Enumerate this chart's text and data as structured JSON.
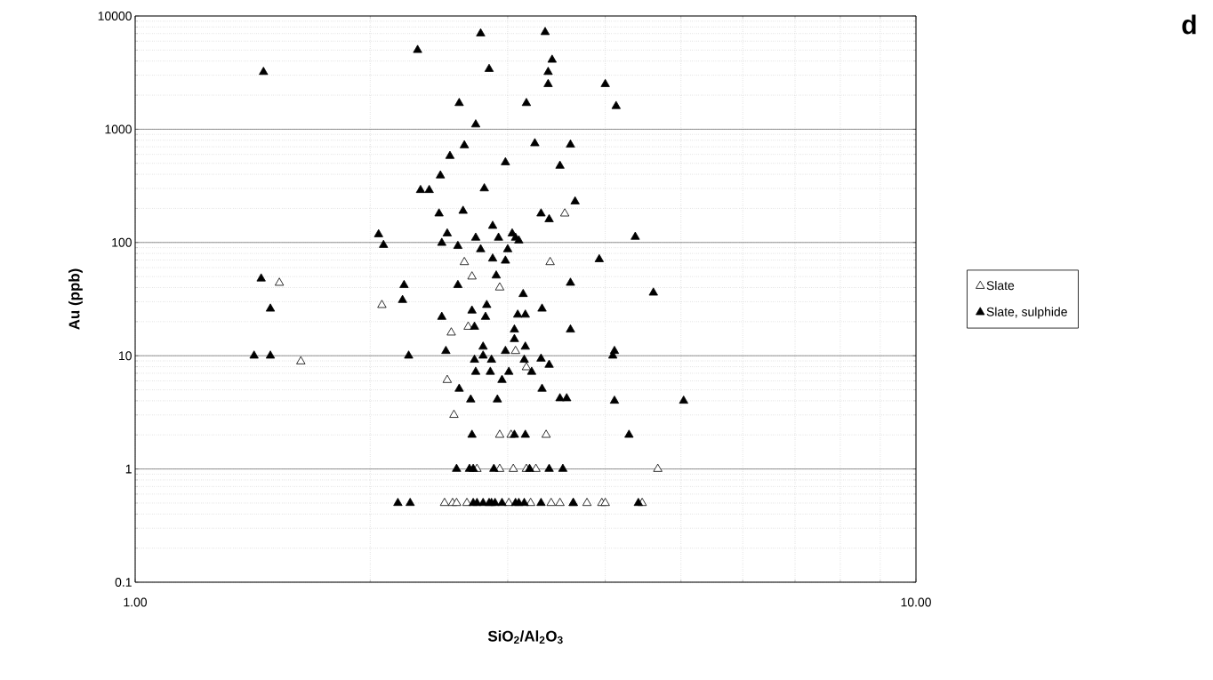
{
  "chart_data": {
    "type": "scatter",
    "xlabel": "SiO$_{2}$/Al$_{2}$O$_{3}$",
    "ylabel": "Au (ppb)",
    "annotations": [
      "d"
    ],
    "log": "xy",
    "grid": true,
    "legend": "right",
    "marker": "triangle",
    "xlim": [
      1,
      10
    ],
    "ylim": [
      0.1,
      10000
    ],
    "xticks": [
      {
        "value": 1,
        "label": "1.00"
      },
      {
        "value": 10,
        "label": "10.00"
      }
    ],
    "yticks": [
      0.1,
      1,
      10,
      100,
      1000,
      10000
    ],
    "series": [
      {
        "name": "Slate",
        "color": "#ffffff",
        "x": [
          1.53,
          1.63,
          2.07,
          2.64,
          2.7,
          2.93,
          3.55,
          3.4,
          2.67,
          2.54,
          3.07,
          3.17,
          2.51,
          2.56,
          2.93,
          3.03,
          3.36,
          4.67,
          2.74,
          2.93,
          3.05,
          3.17,
          3.26,
          2.49,
          2.55,
          2.58,
          2.66,
          3.01,
          3.21,
          3.41,
          3.5,
          3.64,
          3.79,
          3.96,
          4.0,
          4.46
        ],
        "values": [
          44,
          8.9,
          28,
          67,
          50,
          40,
          180,
          67,
          18,
          16,
          11,
          7.9,
          6.1,
          3.0,
          2.0,
          2.0,
          2.0,
          1,
          1,
          1,
          1,
          1,
          1,
          0.5,
          0.5,
          0.5,
          0.5,
          0.5,
          0.5,
          0.5,
          0.5,
          0.5,
          0.5,
          0.5,
          0.5,
          0.5
        ]
      },
      {
        "name": "Slate,  sulphide",
        "color": "#000000",
        "x": [
          2.77,
          3.35,
          2.3,
          3.42,
          2.84,
          3.38,
          3.38,
          1.46,
          4.0,
          4.13,
          2.6,
          3.17,
          2.73,
          2.64,
          3.25,
          3.61,
          2.53,
          2.98,
          3.5,
          2.46,
          2.32,
          2.38,
          2.8,
          3.66,
          2.45,
          2.63,
          3.31,
          3.39,
          2.05,
          2.87,
          2.51,
          2.92,
          3.04,
          3.1,
          3.07,
          2.08,
          2.47,
          2.73,
          2.59,
          2.77,
          3.0,
          2.87,
          2.98,
          4.37,
          3.93,
          2.9,
          2.21,
          2.59,
          3.61,
          2.2,
          3.14,
          2.82,
          2.7,
          3.32,
          3.09,
          3.16,
          2.47,
          2.81,
          2.72,
          3.06,
          3.61,
          3.06,
          2.79,
          3.16,
          2.98,
          2.24,
          2.5,
          2.79,
          2.72,
          2.86,
          3.15,
          3.31,
          3.39,
          2.73,
          2.85,
          3.01,
          3.22,
          2.95,
          2.6,
          3.32,
          2.69,
          2.91,
          3.5,
          3.57,
          2.7,
          3.06,
          3.16,
          4.11,
          4.09,
          4.11,
          5.04,
          4.29,
          4.61,
          1.42,
          1.49,
          1.45,
          1.49,
          2.58,
          2.68,
          2.71,
          2.88,
          3.2,
          3.39,
          3.53,
          2.17,
          2.25,
          2.71,
          2.79,
          2.86,
          3.07,
          3.15,
          3.31,
          3.64,
          4.41,
          2.74,
          2.84,
          2.89,
          2.95,
          3.1
        ],
        "values": [
          7000,
          7200,
          5000,
          4100,
          3400,
          3200,
          2500,
          3200,
          2500,
          1600,
          1700,
          1700,
          1100,
          720,
          750,
          730,
          580,
          510,
          475,
          390,
          290,
          290,
          300,
          230,
          180,
          190,
          180,
          160,
          118,
          140,
          120,
          110,
          120,
          104,
          110,
          95,
          99,
          110,
          93,
          87,
          87,
          72,
          69,
          112,
          71,
          51,
          42,
          42,
          44,
          31,
          35,
          28,
          25,
          26,
          23,
          23,
          22,
          22,
          18,
          17,
          17,
          14,
          12,
          12,
          11,
          10,
          11,
          10,
          9.2,
          9.2,
          9.2,
          9.4,
          8.3,
          7.2,
          7.2,
          7.2,
          7.2,
          6.1,
          5.1,
          5.1,
          4.1,
          4.1,
          4.2,
          4.2,
          2.0,
          2.0,
          2.0,
          11,
          10,
          4.0,
          4.0,
          2.0,
          36,
          10,
          10,
          48,
          26,
          1,
          1,
          1,
          1,
          1,
          1,
          1,
          0.5,
          0.5,
          0.5,
          0.5,
          0.5,
          0.5,
          0.5,
          0.5,
          0.5,
          0.5,
          0.5,
          0.5,
          0.5,
          0.5,
          0.5
        ]
      }
    ]
  }
}
